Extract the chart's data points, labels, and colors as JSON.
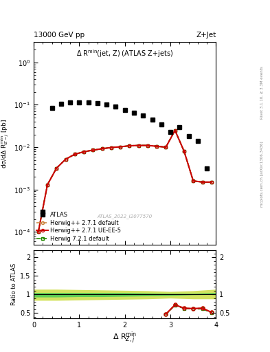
{
  "title_top": "13000 GeV pp",
  "title_right": "Z+Jet",
  "main_title": "Δ R$^{\\mathrm{min}}$(jet, Z) (ATLAS Z+jets)",
  "ylabel_main": "dσ/dΔ R$^{\\mathrm{min}}_{Z-j}$ [pb]",
  "ylabel_ratio": "Ratio to ATLAS",
  "xlabel": "Δ R$^{\\mathrm{min}}_{Z,j}$",
  "right_label_top": "Rivet 3.1.10, ≥ 3.3M events",
  "right_label_bot": "mcplots.cern.ch [arXiv:1306.3436]",
  "watermark": "ATLAS_2022_I2077570",
  "atlas_x": [
    0.2,
    0.4,
    0.6,
    0.8,
    1.0,
    1.2,
    1.4,
    1.6,
    1.8,
    2.0,
    2.2,
    2.4,
    2.6,
    2.8,
    3.0,
    3.2,
    3.4,
    3.6,
    3.8
  ],
  "atlas_y": [
    0.0003,
    0.085,
    0.105,
    0.115,
    0.115,
    0.112,
    0.11,
    0.1,
    0.09,
    0.075,
    0.065,
    0.055,
    0.045,
    0.035,
    0.023,
    0.03,
    0.018,
    0.014,
    0.0032
  ],
  "hw271_x": [
    0.1,
    0.3,
    0.5,
    0.7,
    0.9,
    1.1,
    1.3,
    1.5,
    1.7,
    1.9,
    2.1,
    2.3,
    2.5,
    2.7,
    2.9,
    3.1,
    3.3,
    3.5,
    3.7,
    3.9
  ],
  "hw271_y": [
    0.0001,
    0.0013,
    0.0032,
    0.0052,
    0.0068,
    0.0078,
    0.0085,
    0.0092,
    0.0098,
    0.0102,
    0.0108,
    0.011,
    0.011,
    0.0105,
    0.01,
    0.025,
    0.008,
    0.0016,
    0.0015,
    0.0015
  ],
  "hw271ue_x": [
    0.1,
    0.3,
    0.5,
    0.7,
    0.9,
    1.1,
    1.3,
    1.5,
    1.7,
    1.9,
    2.1,
    2.3,
    2.5,
    2.7,
    2.9,
    3.1,
    3.3,
    3.5,
    3.7,
    3.9
  ],
  "hw271ue_y": [
    0.0001,
    0.0013,
    0.0032,
    0.0052,
    0.0068,
    0.0078,
    0.0085,
    0.0092,
    0.0098,
    0.0102,
    0.0108,
    0.011,
    0.011,
    0.0105,
    0.01,
    0.025,
    0.008,
    0.0016,
    0.0015,
    0.0015
  ],
  "hw721_x": [
    0.1,
    0.3,
    0.5,
    0.7,
    0.9,
    1.1,
    1.3,
    1.5,
    1.7,
    1.9,
    2.1,
    2.3,
    2.5,
    2.7,
    2.9,
    3.1,
    3.3,
    3.5,
    3.7,
    3.9
  ],
  "hw721_y": [
    0.0001,
    0.0013,
    0.0032,
    0.0052,
    0.0068,
    0.0078,
    0.0085,
    0.0092,
    0.0098,
    0.0102,
    0.0108,
    0.011,
    0.011,
    0.0105,
    0.01,
    0.025,
    0.008,
    0.0016,
    0.0015,
    0.0015
  ],
  "ratio_hw271_x": [
    2.9,
    3.1,
    3.3,
    3.5,
    3.7,
    3.9
  ],
  "ratio_hw271_y": [
    0.47,
    0.72,
    0.63,
    0.62,
    0.63,
    0.52
  ],
  "ratio_hw271ue_x": [
    2.9,
    3.1,
    3.3,
    3.5,
    3.7,
    3.9
  ],
  "ratio_hw271ue_y": [
    0.47,
    0.72,
    0.63,
    0.62,
    0.63,
    0.52
  ],
  "ratio_hw721_x": [
    2.9,
    3.1,
    3.3,
    3.5,
    3.7,
    3.9
  ],
  "ratio_hw721_y": [
    0.46,
    0.71,
    0.62,
    0.61,
    0.61,
    0.51
  ],
  "band_x": [
    0.0,
    0.5,
    1.0,
    1.5,
    2.0,
    2.5,
    3.0,
    3.5,
    4.0
  ],
  "band_inner_lo": [
    0.93,
    0.93,
    0.94,
    0.94,
    0.95,
    0.96,
    0.97,
    0.99,
    1.0
  ],
  "band_inner_hi": [
    1.05,
    1.05,
    1.05,
    1.05,
    1.05,
    1.04,
    1.03,
    1.03,
    1.05
  ],
  "band_outer_lo": [
    0.84,
    0.84,
    0.85,
    0.86,
    0.87,
    0.88,
    0.9,
    0.88,
    0.88
  ],
  "band_outer_hi": [
    1.14,
    1.14,
    1.13,
    1.12,
    1.11,
    1.1,
    1.08,
    1.1,
    1.14
  ],
  "color_hw271": "#cc8844",
  "color_hw271ue": "#cc0000",
  "color_hw721": "#228800",
  "color_atlas": "#000000",
  "color_band_inner": "#55cc55",
  "color_band_outer": "#ccdd44",
  "ylim_main": [
    5e-05,
    3.0
  ],
  "ylim_ratio": [
    0.35,
    2.2
  ],
  "xlim": [
    0.0,
    4.0
  ]
}
